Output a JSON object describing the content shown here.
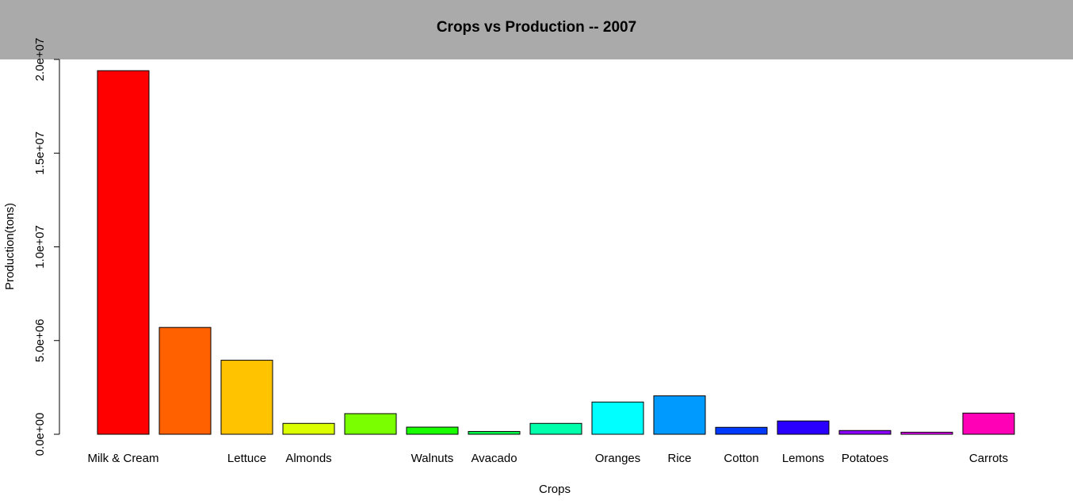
{
  "chart_data": {
    "type": "bar",
    "title": "Crops vs Production -- 2007",
    "xlabel": "Crops",
    "ylabel": "Production(tons)",
    "ylim": [
      0,
      20000000
    ],
    "yticks": [
      0,
      5000000,
      10000000,
      15000000,
      20000000
    ],
    "ytick_labels": [
      "0.0e+00",
      "5.0e+06",
      "1.0e+07",
      "1.5e+07",
      "2.0e+07"
    ],
    "grid": false,
    "header_band_color": "#aaaaaa",
    "categories": [
      "Milk & Cream",
      "",
      "Lettuce",
      "Almonds",
      "",
      "Walnuts",
      "Avacado",
      "",
      "Oranges",
      "Rice",
      "Cotton",
      "Lemons",
      "Potatoes",
      "",
      "Carrots"
    ],
    "values": [
      19400000,
      5700000,
      3950000,
      580000,
      1100000,
      380000,
      150000,
      580000,
      1720000,
      2050000,
      370000,
      710000,
      200000,
      110000,
      1130000
    ],
    "colors": [
      "#ff0000",
      "#ff6100",
      "#ffc300",
      "#dbff00",
      "#79ff00",
      "#18ff00",
      "#00ff49",
      "#00ffaa",
      "#00ffff",
      "#009aff",
      "#0039ff",
      "#2900ff",
      "#8a00ff",
      "#eb00ff",
      "#ff00b6"
    ]
  }
}
